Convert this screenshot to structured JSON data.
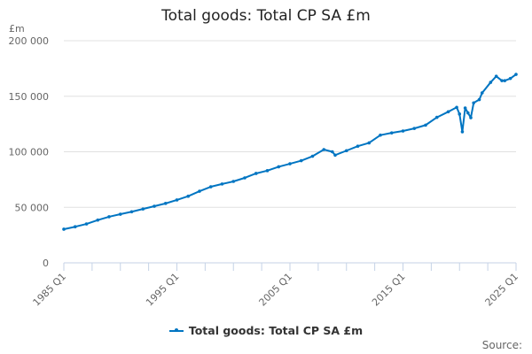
{
  "chart_data": {
    "type": "line",
    "title": "Total goods: Total CP SA £m",
    "ylabel": "£m",
    "xlabel": "",
    "ylim": [
      0,
      200000
    ],
    "xlim": [
      1985,
      2025
    ],
    "y_ticks": [
      0,
      50000,
      100000,
      150000,
      200000
    ],
    "y_tick_labels": [
      "0",
      "50 000",
      "100 000",
      "150 000",
      "200 000"
    ],
    "x_ticks": [
      1985,
      1995,
      2005,
      2015,
      2025
    ],
    "x_tick_labels": [
      "1985 Q1",
      "1995 Q1",
      "2005 Q1",
      "2015 Q1",
      "2025 Q1"
    ],
    "grid": true,
    "legend_position": "bottom",
    "color": "#0075c2",
    "series": [
      {
        "name": "Total goods: Total CP SA £m",
        "x": [
          1985,
          1986,
          1987,
          1988,
          1989,
          1990,
          1991,
          1992,
          1993,
          1994,
          1995,
          1996,
          1997,
          1998,
          1999,
          2000,
          2001,
          2002,
          2003,
          2004,
          2005,
          2006,
          2007,
          2008,
          2008.75,
          2009,
          2010,
          2011,
          2012,
          2013,
          2014,
          2015,
          2016,
          2017,
          2018,
          2019,
          2019.75,
          2020,
          2020.25,
          2020.5,
          2020.75,
          2021,
          2021.25,
          2021.75,
          2022,
          2022.75,
          2023.25,
          2023.75,
          2024,
          2024.5,
          2025
        ],
        "y": [
          30300,
          32500,
          35000,
          38500,
          41500,
          43800,
          46000,
          48500,
          51000,
          53500,
          56600,
          60000,
          64500,
          68500,
          71000,
          73300,
          76500,
          80500,
          83000,
          86500,
          89200,
          92000,
          96000,
          102000,
          100000,
          97000,
          101000,
          105000,
          108000,
          115000,
          117000,
          118700,
          121000,
          124000,
          131000,
          136000,
          140000,
          134000,
          118000,
          139400,
          135000,
          130700,
          144000,
          147000,
          153000,
          162500,
          168000,
          164000,
          164000,
          166000,
          169700
        ]
      }
    ]
  },
  "source_label": "Source:"
}
